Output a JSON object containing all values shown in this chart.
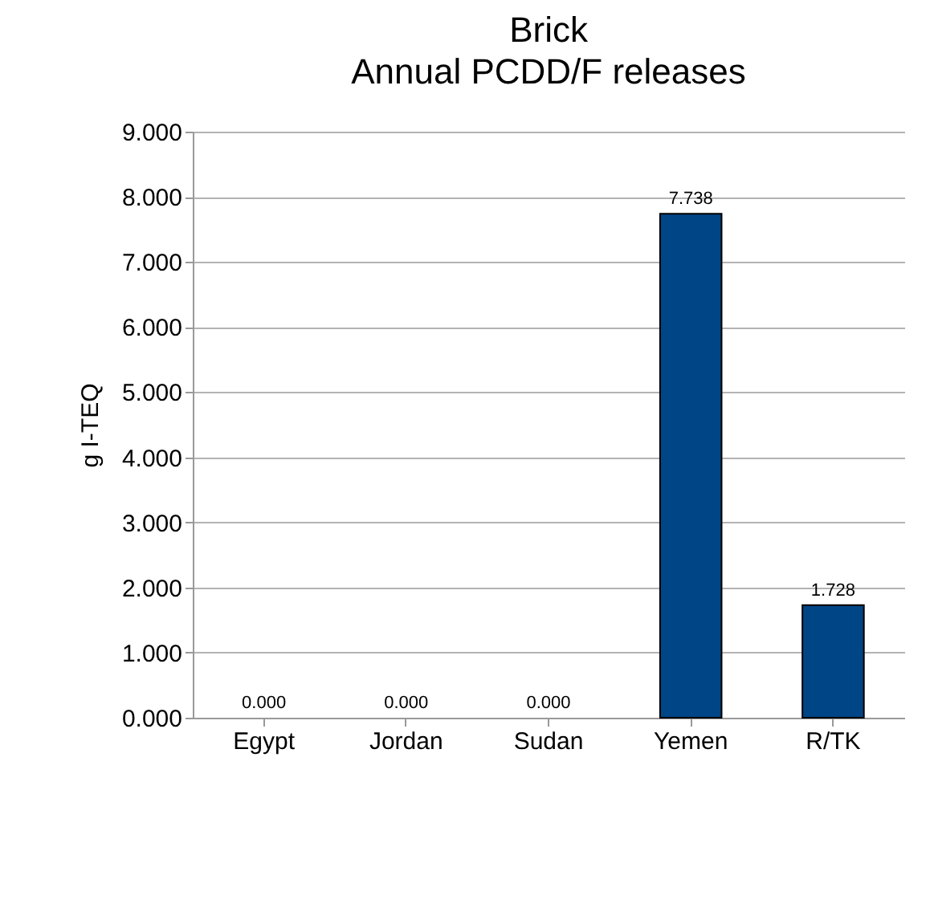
{
  "chart_data": {
    "type": "bar",
    "title": "Brick",
    "subtitle": "Annual PCDD/F releases",
    "ylabel": "g I-TEQ",
    "categories": [
      "Egypt",
      "Jordan",
      "Sudan",
      "Yemen",
      "R/TK"
    ],
    "values": [
      0,
      0,
      0,
      7.738,
      1.728
    ],
    "value_labels": [
      "0.000",
      "0.000",
      "0.000",
      "7.738",
      "1.728"
    ],
    "color": "#004586",
    "ylim": [
      0,
      9
    ],
    "yticks": [
      {
        "value": 0,
        "label": "0.000"
      },
      {
        "value": 1,
        "label": "1.000"
      },
      {
        "value": 2,
        "label": "2.000"
      },
      {
        "value": 3,
        "label": "3.000"
      },
      {
        "value": 4,
        "label": "4.000"
      },
      {
        "value": 5,
        "label": "5.000"
      },
      {
        "value": 6,
        "label": "6.000"
      },
      {
        "value": 7,
        "label": "7.000"
      },
      {
        "value": 8,
        "label": "8.000"
      },
      {
        "value": 9,
        "label": "9.000"
      }
    ],
    "grid": "y"
  }
}
